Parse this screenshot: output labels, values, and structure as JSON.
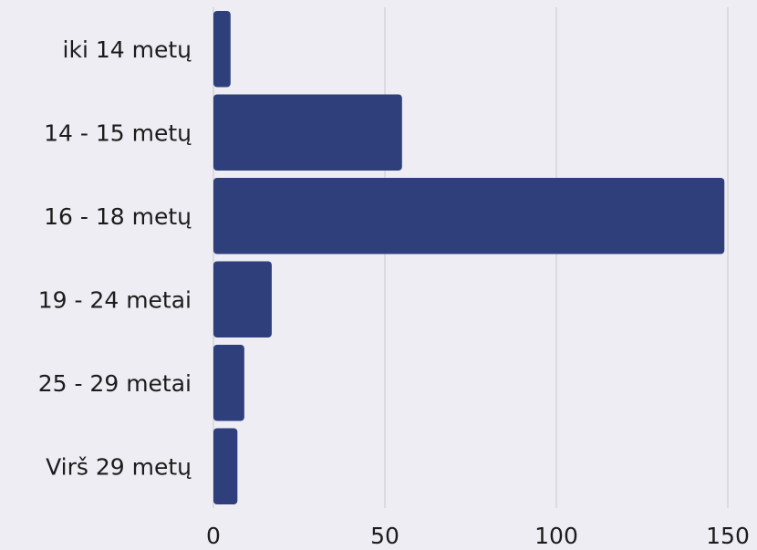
{
  "chart_data": {
    "type": "bar",
    "orientation": "horizontal",
    "categories": [
      "iki 14 metų",
      "14 - 15 metų",
      "16 - 18 metų",
      "19 - 24 metai",
      "25 - 29 metai",
      "Virš 29 metų"
    ],
    "values": [
      5,
      55,
      149,
      17,
      9,
      7
    ],
    "xticks": [
      0,
      50,
      100,
      150
    ],
    "xlim": [
      0,
      150
    ],
    "grid": true,
    "bar_color": "#2e3f7c",
    "title": "",
    "xlabel": "",
    "ylabel": ""
  }
}
